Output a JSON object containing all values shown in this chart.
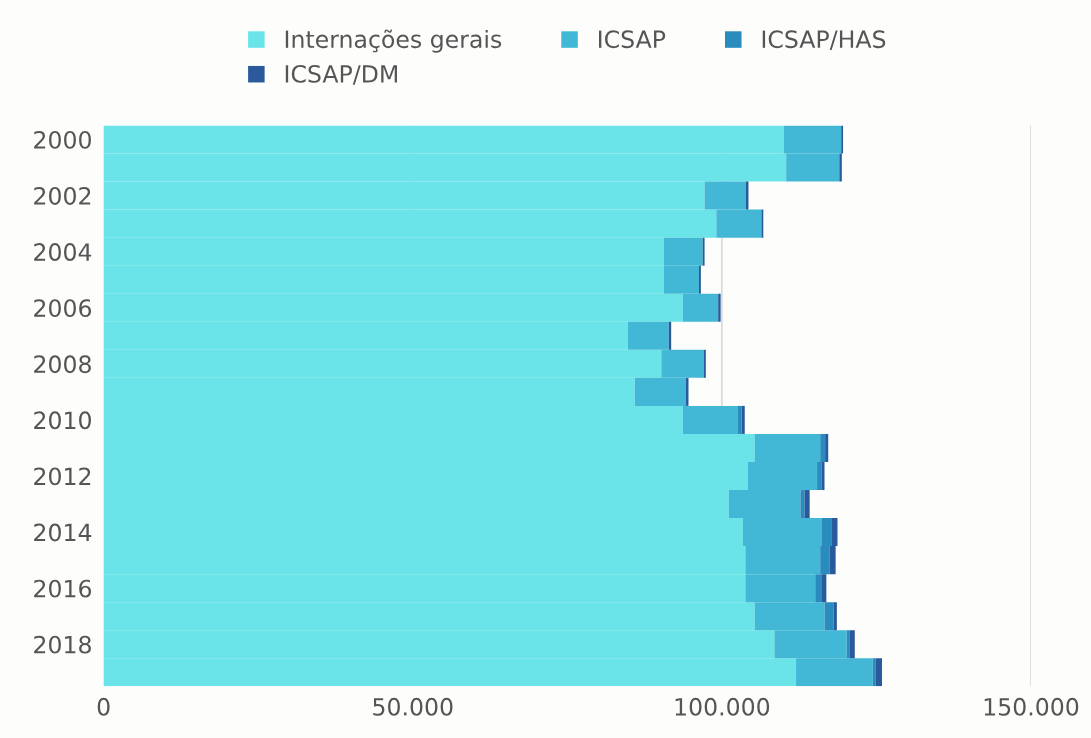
{
  "chart_data": {
    "type": "bar",
    "orientation": "horizontal",
    "stacked": true,
    "categories": [
      "2000",
      null,
      "2002",
      null,
      "2004",
      null,
      "2006",
      null,
      "2008",
      null,
      "2010",
      null,
      "2012",
      null,
      "2014",
      null,
      "2016",
      null,
      "2018",
      null
    ],
    "series": [
      {
        "name": "Internações gerais",
        "color": "#6ae4e8",
        "values": [
          110000,
          110400,
          97200,
          99100,
          90600,
          90600,
          93700,
          84800,
          90200,
          85900,
          93700,
          105300,
          104200,
          101100,
          103400,
          103800,
          103800,
          105300,
          108500,
          112000
        ]
      },
      {
        "name": "ICSAP",
        "color": "#42b8d6",
        "values": [
          9300,
          8600,
          6700,
          7300,
          6300,
          5700,
          5700,
          6600,
          6900,
          8300,
          8900,
          10600,
          11200,
          11600,
          12800,
          12100,
          11300,
          11300,
          11700,
          12400
        ]
      },
      {
        "name": "ICSAP/HAS",
        "color": "#2a8bbd",
        "values": [
          null,
          null,
          null,
          null,
          null,
          null,
          null,
          null,
          null,
          null,
          600,
          800,
          700,
          700,
          1600,
          1500,
          1100,
          1500,
          500,
          500
        ]
      },
      {
        "name": "ICSAP/DM",
        "color": "#2a5a9c",
        "values": [
          300,
          400,
          400,
          300,
          300,
          300,
          400,
          400,
          300,
          400,
          500,
          500,
          500,
          800,
          900,
          1000,
          700,
          500,
          800,
          1000
        ]
      }
    ],
    "xlim": [
      0,
      150000
    ],
    "xticks": [
      {
        "value": 0,
        "label": "0"
      },
      {
        "value": 50000,
        "label": "50.000"
      },
      {
        "value": 100000,
        "label": "100.000"
      },
      {
        "value": 150000,
        "label": "150.000"
      }
    ],
    "grid": "x",
    "legend": "top"
  }
}
